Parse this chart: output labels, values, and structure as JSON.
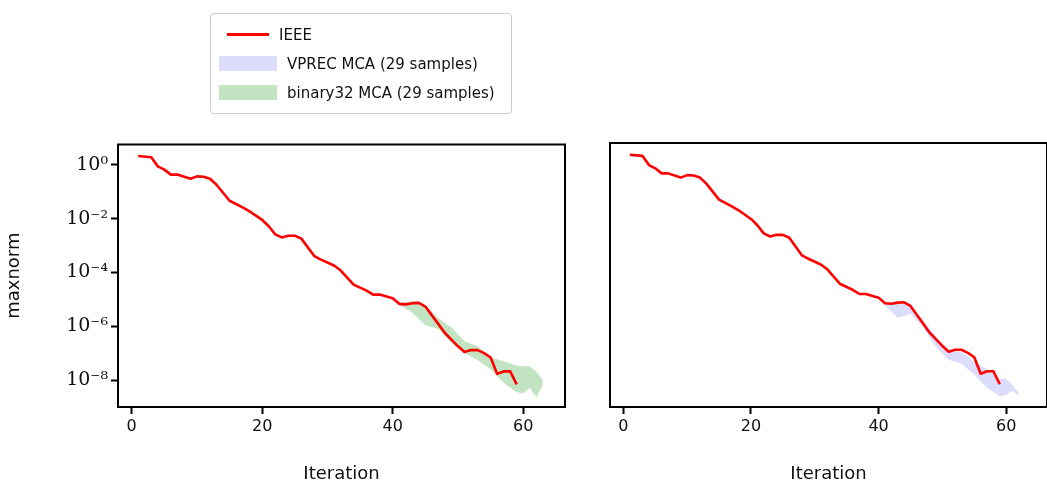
{
  "chart_data": [
    {
      "type": "line",
      "xlabel": "Iteration",
      "ylabel": "maxnorm",
      "log": "y",
      "legend": "top",
      "grid": false,
      "xlim": [
        -2.1,
        66.4
      ],
      "xticks": [
        0,
        20,
        40,
        60
      ],
      "ylim": [
        1e-09,
        5.7
      ],
      "yticks": [
        {
          "value": 1,
          "label": "10⁰"
        },
        {
          "value": 0.01,
          "label": "10⁻²"
        },
        {
          "value": 0.0001,
          "label": "10⁻⁴"
        },
        {
          "value": 1e-06,
          "label": "10⁻⁶"
        },
        {
          "value": 1e-08,
          "label": "10⁻⁸"
        }
      ],
      "series": [
        {
          "name": "IEEE",
          "color": "#ff0000",
          "x": [
            1,
            3,
            4,
            5,
            6,
            7,
            9,
            10,
            11,
            12,
            13,
            15,
            17,
            18,
            20,
            21,
            22,
            23,
            24,
            25,
            26,
            28,
            29,
            31,
            32,
            34,
            36,
            37,
            38,
            40,
            41,
            42,
            43,
            44,
            45,
            47,
            48,
            50,
            51,
            52,
            53,
            54,
            55,
            56,
            57,
            58,
            59
          ],
          "values": [
            2.1,
            1.9,
            0.87,
            0.66,
            0.43,
            0.43,
            0.3,
            0.37,
            0.36,
            0.3,
            0.18,
            0.046,
            0.026,
            0.019,
            0.0089,
            0.0052,
            0.0026,
            0.002,
            0.0023,
            0.0023,
            0.0018,
            0.0004,
            0.0003,
            0.00018,
            0.00012,
            3.5e-05,
            2.1e-05,
            1.5e-05,
            1.5e-05,
            1.1e-05,
            6.8e-06,
            6.5e-06,
            7.2e-06,
            7.4e-06,
            5.4e-06,
            1.2e-06,
            5.6e-07,
            1.8e-07,
            1.1e-07,
            1.3e-07,
            1.3e-07,
            1e-07,
            6.9e-08,
            1.7e-08,
            2.1e-08,
            2.1e-08,
            6.9e-09
          ]
        },
        {
          "name": "binary32 MCA (29 samples)",
          "type": "area",
          "color": "#c3e4c3",
          "x": [
            41,
            43,
            45,
            47,
            49,
            51,
            53,
            55,
            57,
            59,
            60,
            61,
            62,
            63
          ],
          "values": [
            null,
            null,
            null,
            null,
            null,
            null,
            null,
            null,
            null,
            null,
            null,
            null,
            null,
            null
          ],
          "upper": [
            7.4e-06,
            8.3e-06,
            6e-06,
            2e-06,
            8.9e-07,
            2.8e-07,
            1.8e-07,
            7.1e-08,
            5e-08,
            3.5e-08,
            3.3e-08,
            3.3e-08,
            2.1e-08,
            1e-08
          ],
          "lower": [
            6.3e-06,
            3.2e-06,
            1.1e-06,
            7.9e-07,
            2.5e-07,
            1e-07,
            5.6e-08,
            2.5e-08,
            7.9e-09,
            3.5e-09,
            3.2e-09,
            5.2e-09,
            2.3e-09,
            6.3e-09
          ]
        }
      ]
    },
    {
      "type": "line",
      "xlabel": "Iteration",
      "log": "y",
      "legend": "top",
      "grid": false,
      "tick_labels": "x",
      "xlim": [
        -2.1,
        66.4
      ],
      "xticks": [
        0,
        20,
        40,
        60
      ],
      "ylim": [
        1e-09,
        5.7
      ],
      "series": [
        {
          "name": "IEEE",
          "color": "#ff0000",
          "x": [
            1,
            3,
            4,
            5,
            6,
            7,
            9,
            10,
            11,
            12,
            13,
            15,
            17,
            18,
            20,
            21,
            22,
            23,
            24,
            25,
            26,
            28,
            29,
            31,
            32,
            34,
            36,
            37,
            38,
            40,
            41,
            42,
            43,
            44,
            45,
            47,
            48,
            50,
            51,
            52,
            53,
            54,
            55,
            56,
            57,
            58,
            59
          ],
          "values": [
            2.1,
            1.9,
            0.87,
            0.66,
            0.43,
            0.43,
            0.3,
            0.37,
            0.36,
            0.3,
            0.18,
            0.046,
            0.026,
            0.019,
            0.0089,
            0.0052,
            0.0026,
            0.002,
            0.0023,
            0.0023,
            0.0018,
            0.0004,
            0.0003,
            0.00018,
            0.00012,
            3.5e-05,
            2.1e-05,
            1.5e-05,
            1.5e-05,
            1.1e-05,
            6.8e-06,
            6.5e-06,
            7.2e-06,
            7.4e-06,
            5.4e-06,
            1.2e-06,
            5.6e-07,
            1.8e-07,
            1.1e-07,
            1.3e-07,
            1.3e-07,
            1e-07,
            6.9e-08,
            1.7e-08,
            2.1e-08,
            2.1e-08,
            6.9e-09
          ]
        },
        {
          "name": "VPREC MCA (29 samples)",
          "type": "area",
          "color": "#dcdcfc",
          "x": [
            41,
            43,
            45,
            47,
            49,
            51,
            53,
            55,
            57,
            59,
            60,
            61,
            62
          ],
          "values": [
            null,
            null,
            null,
            null,
            null,
            null,
            null,
            null,
            null,
            null,
            null,
            null,
            null
          ],
          "upper": [
            7.1e-06,
            7.9e-06,
            5e-06,
            1.6e-06,
            4e-07,
            1.1e-07,
            1.1e-07,
            4.5e-08,
            2.5e-08,
            1.1e-08,
            1.1e-08,
            6.3e-09,
            3.2e-09
          ],
          "lower": [
            5.6e-06,
            2e-06,
            2.8e-06,
            8.9e-07,
            1.6e-07,
            5.6e-08,
            4e-08,
            1.6e-08,
            5e-09,
            2.5e-09,
            2.8e-09,
            4e-09,
            2.5e-09
          ]
        }
      ]
    }
  ]
}
